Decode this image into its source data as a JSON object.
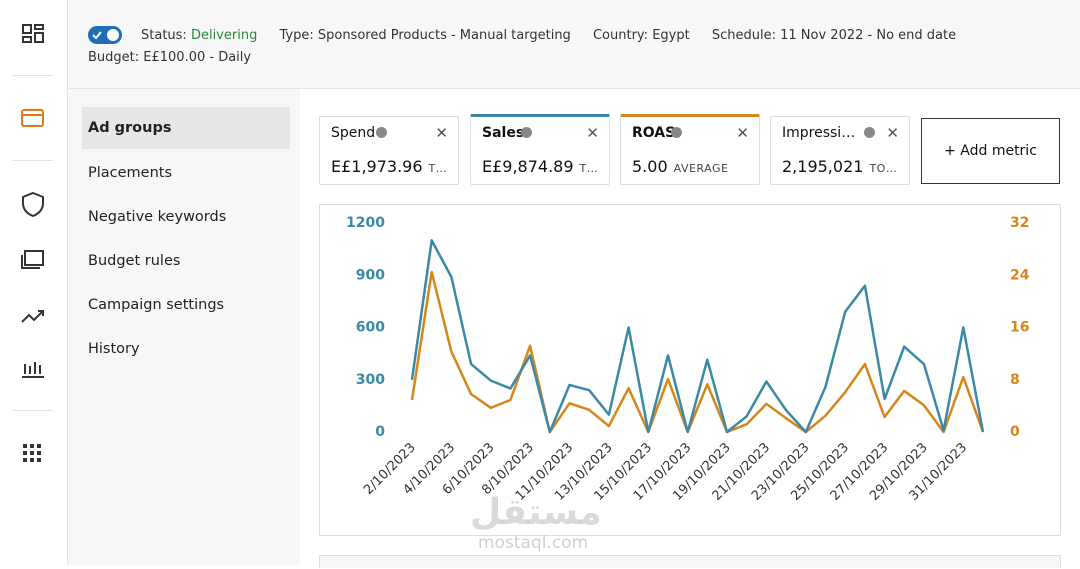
{
  "header": {
    "status_label": "Status:",
    "status": "Delivering",
    "type_label": "Type:",
    "type": "Sponsored Products - Manual targeting",
    "country_label": "Country:",
    "country": "Egypt",
    "schedule_label": "Schedule:",
    "schedule": "11 Nov 2022 - No end date",
    "budget_label": "Budget:",
    "budget": "E£100.00 - Daily"
  },
  "nav": [
    "Ad groups",
    "Placements",
    "Negative keywords",
    "Budget rules",
    "Campaign settings",
    "History"
  ],
  "metrics": [
    {
      "name": "Spend",
      "value": "E£1,973.96",
      "note": "T…"
    },
    {
      "name": "Sales",
      "value": "E£9,874.89",
      "note": "T…",
      "color": "#3a8aa6"
    },
    {
      "name": "ROAS",
      "value": "5.00",
      "note": "AVERAGE",
      "color": "#d6861a"
    },
    {
      "name": "Impressi…",
      "value": "2,195,021",
      "note": "TO…"
    }
  ],
  "add_metric": "+ Add metric",
  "watermark": {
    "arabic": "مستقل",
    "latin": "mostaql.com"
  },
  "chart_data": {
    "type": "line",
    "categories": [
      "2/10/2023",
      null,
      "4/10/2023",
      null,
      "6/10/2023",
      null,
      "8/10/2023",
      null,
      "11/10/2023",
      null,
      "13/10/2023",
      null,
      "15/10/2023",
      null,
      "17/10/2023",
      null,
      "19/10/2023",
      null,
      "21/10/2023",
      null,
      "23/10/2023",
      null,
      "25/10/2023",
      null,
      "27/10/2023",
      null,
      "29/10/2023",
      null,
      "31/10/2023",
      null
    ],
    "series": [
      {
        "color": "#3a8aa6",
        "values": [
          300,
          1100,
          890,
          390,
          295,
          250,
          440,
          0,
          270,
          240,
          100,
          600,
          0,
          440,
          0,
          415,
          0,
          90,
          290,
          125,
          0,
          260,
          690,
          840,
          190,
          490,
          390,
          10,
          600,
          0
        ]
      },
      {
        "color": "#d6861a",
        "axis": "y2",
        "values": [
          4.9,
          24.5,
          12.3,
          5.8,
          3.7,
          4.9,
          13.2,
          0,
          4.4,
          3.4,
          0.9,
          6.7,
          0,
          8.1,
          0,
          7.3,
          0,
          1.2,
          4.3,
          2.1,
          0,
          2.5,
          6.1,
          10.4,
          2.3,
          6.3,
          4.1,
          0,
          8.4,
          0
        ]
      }
    ],
    "ylim": [
      0,
      1200
    ],
    "yticks": [
      0,
      300,
      600,
      900,
      1200
    ],
    "y2lim": [
      0,
      32
    ],
    "y2ticks": [
      0,
      8,
      16,
      24,
      32
    ],
    "grid": false
  }
}
